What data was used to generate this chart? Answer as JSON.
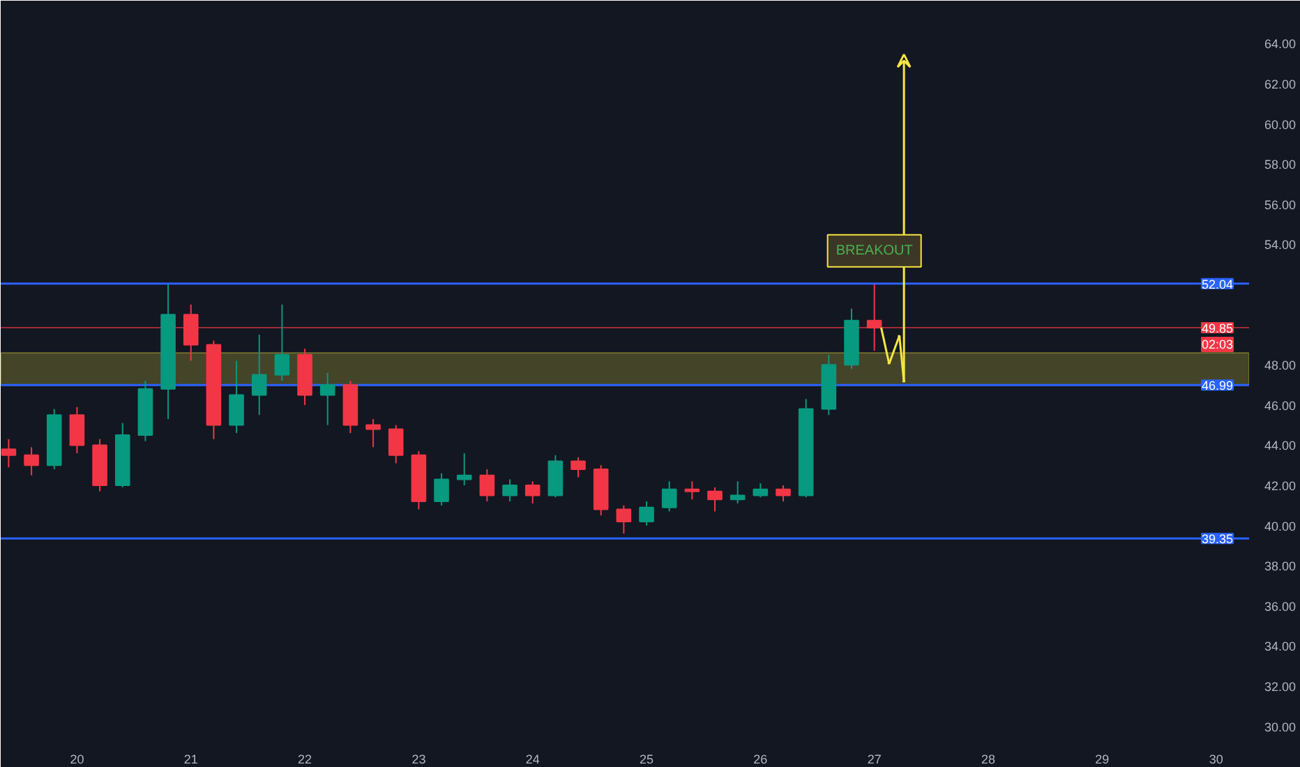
{
  "chart_data": {
    "type": "candlestick",
    "x": [
      19.4,
      19.6,
      19.8,
      20.0,
      20.2,
      20.4,
      20.6,
      20.8,
      21.0,
      21.2,
      21.4,
      21.6,
      21.8,
      22.0,
      22.2,
      22.4,
      22.6,
      22.8,
      23.0,
      23.2,
      23.4,
      23.6,
      23.8,
      24.0,
      24.2,
      24.4,
      24.6,
      24.8,
      25.0,
      25.2,
      25.4,
      25.6,
      25.8,
      26.0,
      26.2,
      26.4,
      26.6,
      26.8,
      27.0
    ],
    "ohlc": [
      [
        43.8,
        44.3,
        42.9,
        43.5
      ],
      [
        43.5,
        43.9,
        42.5,
        43.0
      ],
      [
        43.0,
        45.8,
        42.8,
        45.5
      ],
      [
        45.5,
        45.9,
        43.6,
        44.0
      ],
      [
        44.0,
        44.3,
        41.7,
        42.0
      ],
      [
        42.0,
        45.1,
        41.9,
        44.5
      ],
      [
        44.5,
        47.2,
        44.2,
        46.8
      ],
      [
        46.8,
        52.0,
        45.3,
        50.5
      ],
      [
        50.5,
        51.0,
        48.2,
        49.0
      ],
      [
        49.0,
        49.2,
        44.3,
        45.0
      ],
      [
        45.0,
        48.2,
        44.6,
        46.5
      ],
      [
        46.5,
        49.5,
        45.5,
        47.5
      ],
      [
        47.5,
        51.0,
        47.2,
        48.5
      ],
      [
        48.5,
        48.8,
        46.0,
        46.5
      ],
      [
        46.5,
        47.6,
        45.0,
        47.0
      ],
      [
        47.0,
        47.2,
        44.6,
        45.0
      ],
      [
        45.0,
        45.3,
        43.9,
        44.8
      ],
      [
        44.8,
        45.0,
        43.1,
        43.5
      ],
      [
        43.5,
        43.7,
        40.8,
        41.2
      ],
      [
        41.2,
        42.6,
        41.0,
        42.3
      ],
      [
        42.3,
        43.6,
        42.0,
        42.5
      ],
      [
        42.5,
        42.8,
        41.2,
        41.5
      ],
      [
        41.5,
        42.3,
        41.2,
        42.0
      ],
      [
        42.0,
        42.2,
        41.1,
        41.5
      ],
      [
        41.5,
        43.5,
        41.4,
        43.2
      ],
      [
        43.2,
        43.4,
        42.4,
        42.8
      ],
      [
        42.8,
        43.0,
        40.5,
        40.8
      ],
      [
        40.8,
        41.0,
        39.6,
        40.2
      ],
      [
        40.2,
        41.2,
        40.0,
        40.9
      ],
      [
        40.9,
        42.2,
        40.7,
        41.8
      ],
      [
        41.8,
        42.2,
        41.3,
        41.7
      ],
      [
        41.7,
        41.9,
        40.7,
        41.3
      ],
      [
        41.3,
        42.2,
        41.1,
        41.5
      ],
      [
        41.5,
        42.1,
        41.4,
        41.8
      ],
      [
        41.8,
        42.0,
        41.2,
        41.5
      ],
      [
        41.5,
        46.3,
        41.4,
        45.8
      ],
      [
        45.8,
        48.5,
        45.5,
        48.0
      ],
      [
        48.0,
        50.8,
        47.8,
        50.2
      ],
      [
        50.2,
        52.0,
        48.7,
        49.85
      ]
    ],
    "colors": [
      "#f23645",
      "#f23645",
      "#089981",
      "#f23645",
      "#f23645",
      "#089981",
      "#089981",
      "#089981",
      "#f23645",
      "#f23645",
      "#089981",
      "#089981",
      "#089981",
      "#f23645",
      "#089981",
      "#f23645",
      "#f23645",
      "#f23645",
      "#f23645",
      "#089981",
      "#089981",
      "#f23645",
      "#089981",
      "#f23645",
      "#089981",
      "#f23645",
      "#f23645",
      "#f23645",
      "#089981",
      "#089981",
      "#f23645",
      "#f23645",
      "#089981",
      "#089981",
      "#f23645",
      "#089981",
      "#089981",
      "#089981",
      "#f23645"
    ],
    "xlim": [
      19.33,
      30.29
    ],
    "ylim": [
      29.4,
      65.85
    ],
    "xticks": [
      20,
      21,
      22,
      23,
      24,
      25,
      26,
      27,
      28,
      29,
      30
    ],
    "yticks": [
      {
        "value": 30,
        "label": "30.00"
      },
      {
        "value": 32,
        "label": "32.00"
      },
      {
        "value": 34,
        "label": "34.00"
      },
      {
        "value": 36,
        "label": "36.00"
      },
      {
        "value": 38,
        "label": "38.00"
      },
      {
        "value": 40,
        "label": "40.00"
      },
      {
        "value": 42,
        "label": "42.00"
      },
      {
        "value": 44,
        "label": "44.00"
      },
      {
        "value": 46,
        "label": "46.00"
      },
      {
        "value": 48,
        "label": "48.00"
      },
      {
        "value": 54,
        "label": "54.00"
      },
      {
        "value": 56,
        "label": "56.00"
      },
      {
        "value": 58,
        "label": "58.00"
      },
      {
        "value": 60,
        "label": "60.00"
      },
      {
        "value": 62,
        "label": "62.00"
      },
      {
        "value": 64,
        "label": "64.00"
      }
    ],
    "ref_lines": [
      {
        "axis": "y",
        "value": 52.04,
        "label": "52.04",
        "color": "#2962ff"
      },
      {
        "axis": "y",
        "value": 46.99,
        "label": "46.99",
        "color": "#2962ff"
      },
      {
        "axis": "y",
        "value": 39.35,
        "label": "39.35",
        "color": "#2962ff"
      },
      {
        "axis": "y",
        "value": 49.85,
        "label": "49.85",
        "color": "#f23645"
      }
    ],
    "bands": [
      {
        "axis": "y",
        "from": 46.99,
        "to": 48.6,
        "color": "#f5e642"
      }
    ],
    "annotations": [
      "BREAKOUT",
      "02:03"
    ],
    "grid": false
  }
}
